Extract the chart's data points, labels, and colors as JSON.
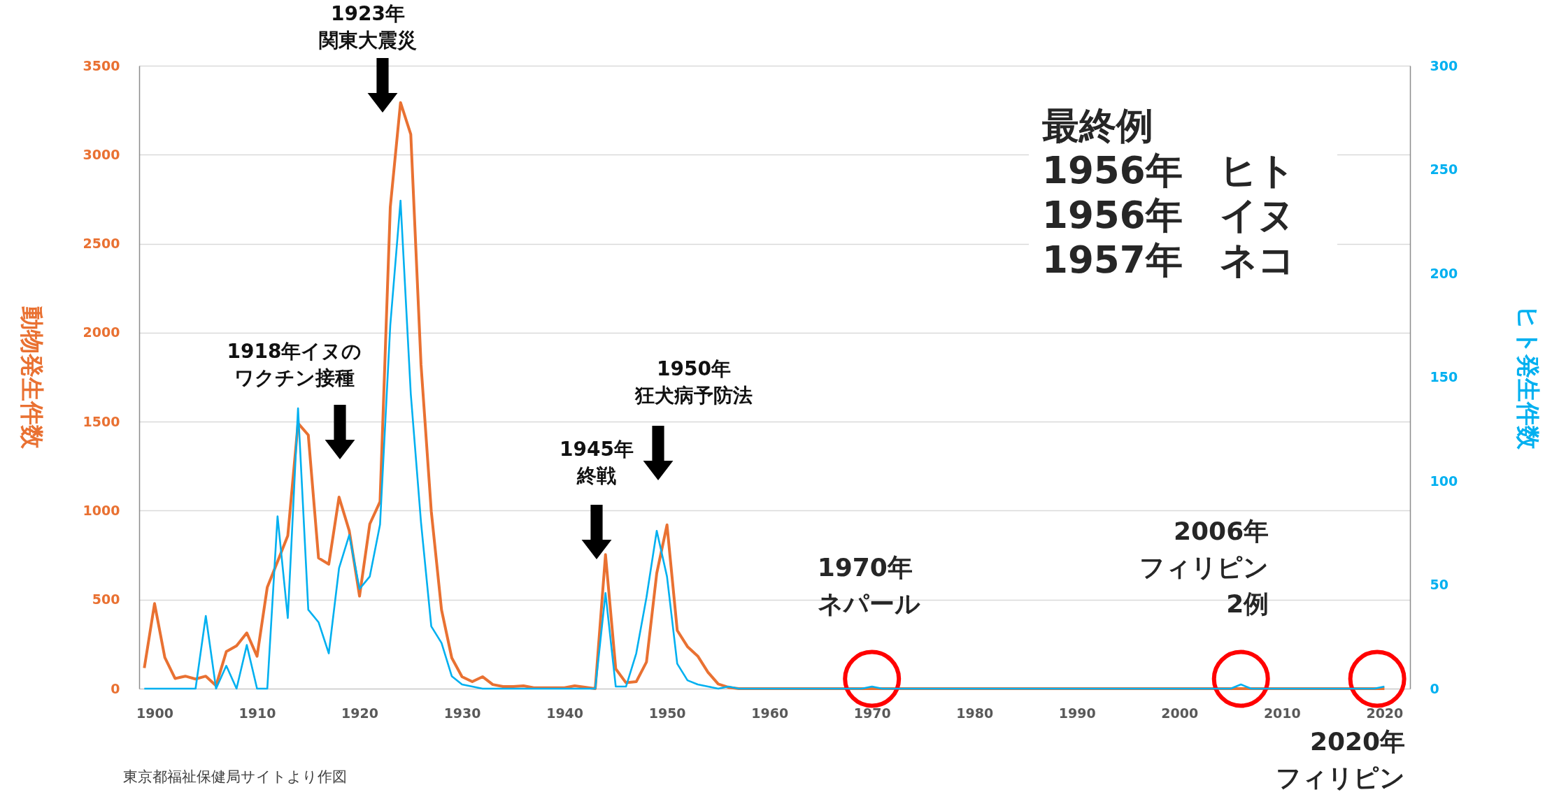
{
  "chart_data": {
    "type": "line",
    "ylabel": "動物発生件数",
    "y2label": "ヒト発生件数",
    "x": [
      1899,
      1900,
      1901,
      1902,
      1903,
      1904,
      1905,
      1906,
      1907,
      1908,
      1909,
      1910,
      1911,
      1912,
      1913,
      1914,
      1915,
      1916,
      1917,
      1918,
      1919,
      1920,
      1921,
      1922,
      1923,
      1924,
      1925,
      1926,
      1927,
      1928,
      1929,
      1930,
      1931,
      1932,
      1933,
      1934,
      1935,
      1936,
      1937,
      1938,
      1939,
      1940,
      1941,
      1942,
      1943,
      1944,
      1945,
      1946,
      1947,
      1948,
      1949,
      1950,
      1951,
      1952,
      1953,
      1954,
      1955,
      1956,
      1957,
      1958,
      1959,
      1960,
      1961,
      1962,
      1963,
      1964,
      1965,
      1966,
      1967,
      1968,
      1969,
      1970,
      1971,
      1972,
      1973,
      1974,
      1975,
      1976,
      1977,
      1978,
      1979,
      1980,
      1981,
      1982,
      1983,
      1984,
      1985,
      1986,
      1987,
      1988,
      1989,
      1990,
      1991,
      1992,
      1993,
      1994,
      1995,
      1996,
      1997,
      1998,
      1999,
      2000,
      2001,
      2002,
      2003,
      2004,
      2005,
      2006,
      2007,
      2008,
      2009,
      2010,
      2011,
      2012,
      2013,
      2014,
      2015,
      2016,
      2017,
      2018,
      2019,
      2020
    ],
    "series": [
      {
        "color": "#e97132",
        "values": [
          116,
          478,
          175,
          57,
          70,
          54,
          70,
          17,
          208,
          241,
          313,
          182,
          570,
          714,
          859,
          1491,
          1425,
          734,
          699,
          1076,
          886,
          520,
          925,
          1050,
          2705,
          3293,
          3115,
          1820,
          997,
          443,
          173,
          67,
          39,
          67,
          23,
          12,
          12,
          16,
          5,
          5,
          5,
          5,
          16,
          8,
          0,
          753,
          111,
          33,
          39,
          150,
          648,
          920,
          327,
          236,
          183,
          92,
          26,
          7,
          0,
          0,
          0,
          0,
          0,
          0,
          0,
          0,
          0,
          0,
          0,
          0,
          0,
          0,
          0,
          0,
          0,
          0,
          0,
          0,
          0,
          0,
          0,
          0,
          0,
          0,
          0,
          0,
          0,
          0,
          0,
          0,
          0,
          0,
          0,
          0,
          0,
          0,
          0,
          0,
          0,
          0,
          0,
          0,
          0,
          0,
          0,
          0,
          0,
          0,
          0,
          0,
          0,
          0,
          0,
          0,
          0,
          0,
          0,
          0,
          0,
          0,
          0,
          0
        ]
      },
      {
        "color": "#00b0f0",
        "axis": "y2",
        "values": [
          0,
          0,
          0,
          0,
          0,
          0,
          35,
          0,
          11,
          0,
          21,
          0,
          0,
          83,
          34,
          135,
          38,
          32,
          17,
          58,
          74,
          48,
          54,
          79,
          175,
          235,
          142,
          80,
          30,
          22,
          6,
          2,
          1,
          0,
          0,
          0,
          0,
          0,
          0,
          0,
          0,
          0,
          0,
          0,
          0,
          46,
          1,
          1,
          17,
          44,
          76,
          54,
          12,
          4,
          2,
          1,
          0,
          1,
          0,
          0,
          0,
          0,
          0,
          0,
          0,
          0,
          0,
          0,
          0,
          0,
          0,
          1,
          0,
          0,
          0,
          0,
          0,
          0,
          0,
          0,
          0,
          0,
          0,
          0,
          0,
          0,
          0,
          0,
          0,
          0,
          0,
          0,
          0,
          0,
          0,
          0,
          0,
          0,
          0,
          0,
          0,
          0,
          0,
          0,
          0,
          0,
          0,
          2,
          0,
          0,
          0,
          0,
          0,
          0,
          0,
          0,
          0,
          0,
          0,
          0,
          0,
          1
        ]
      }
    ],
    "xlim": [
      1898.5,
      2022.5
    ],
    "xticks": [
      1900,
      1910,
      1920,
      1930,
      1940,
      1950,
      1960,
      1970,
      1980,
      1990,
      2000,
      2010,
      2020
    ],
    "ylim": [
      0,
      3500
    ],
    "yticks": [
      0,
      500,
      1000,
      1500,
      2000,
      2500,
      3000,
      3500
    ],
    "y2lim": [
      0,
      300
    ],
    "y2ticks": [
      0,
      50,
      100,
      150,
      200,
      250,
      300
    ],
    "grid": "y",
    "annotations": [
      "最終例\n1956年　ヒト\n1956年　イヌ\n1957年　ネコ",
      "1918年イヌのワクチン接種",
      "1923年関東大震災",
      "1945年終戦",
      "1950年狂犬病予防法",
      {
        "text": "1970年ネパール",
        "x": 1970,
        "y": 0
      },
      {
        "text": "2006年フィリピン2例",
        "x": 2006,
        "y": 0
      },
      {
        "text": "2020年フィリピン",
        "x": 2019.3,
        "y": 0
      },
      "東京都福祉保健局サイトより作図"
    ]
  }
}
